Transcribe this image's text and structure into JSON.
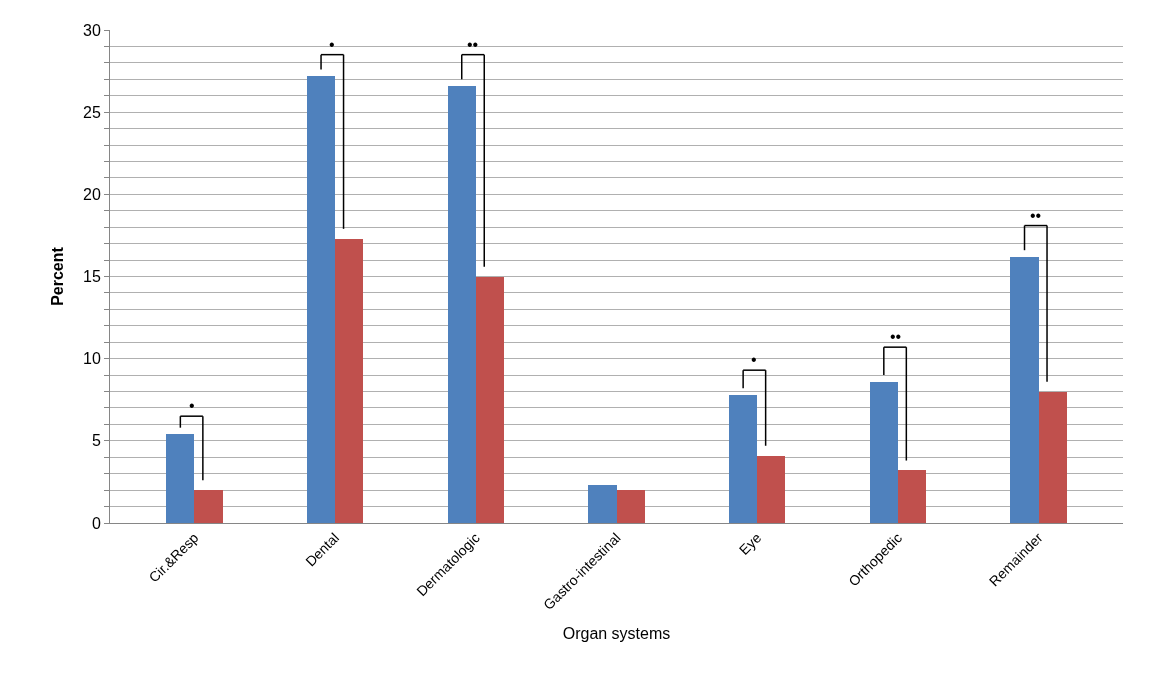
{
  "chart_data": {
    "type": "bar",
    "xlabel": "Organ systems",
    "ylabel": "Percent",
    "categories": [
      "Cir.&Resp",
      "Dental",
      "Dermatologic",
      "Gastro-intestinal",
      "Eye",
      "Orthopedic",
      "Remainder"
    ],
    "series": [
      {
        "color": "#4f81bd",
        "values": [
          5.4,
          27.2,
          26.6,
          2.3,
          7.8,
          8.6,
          16.2
        ]
      },
      {
        "color": "#c0504d",
        "values": [
          2.0,
          17.3,
          15.0,
          2.0,
          4.1,
          3.2,
          8.0
        ]
      }
    ],
    "ylim": [
      0,
      30
    ],
    "yticks": [
      0,
      {
        "value": 1,
        "label": null
      },
      {
        "value": 2,
        "label": null
      },
      {
        "value": 3,
        "label": null
      },
      {
        "value": 4,
        "label": null
      },
      5,
      {
        "value": 6,
        "label": null
      },
      {
        "value": 7,
        "label": null
      },
      {
        "value": 8,
        "label": null
      },
      {
        "value": 9,
        "label": null
      },
      10,
      {
        "value": 11,
        "label": null
      },
      {
        "value": 12,
        "label": null
      },
      {
        "value": 13,
        "label": null
      },
      {
        "value": 14,
        "label": null
      },
      15,
      {
        "value": 16,
        "label": null
      },
      {
        "value": 17,
        "label": null
      },
      {
        "value": 18,
        "label": null
      },
      {
        "value": 19,
        "label": null
      },
      20,
      {
        "value": 21,
        "label": null
      },
      {
        "value": 22,
        "label": null
      },
      {
        "value": 23,
        "label": null
      },
      {
        "value": 24,
        "label": null
      },
      25,
      {
        "value": 26,
        "label": null
      },
      {
        "value": 27,
        "label": null
      },
      {
        "value": 28,
        "label": null
      },
      {
        "value": 29,
        "label": null
      },
      30
    ],
    "grid": "y",
    "annotations": [
      "•",
      "•",
      "••",
      "•",
      "••",
      "••"
    ]
  }
}
